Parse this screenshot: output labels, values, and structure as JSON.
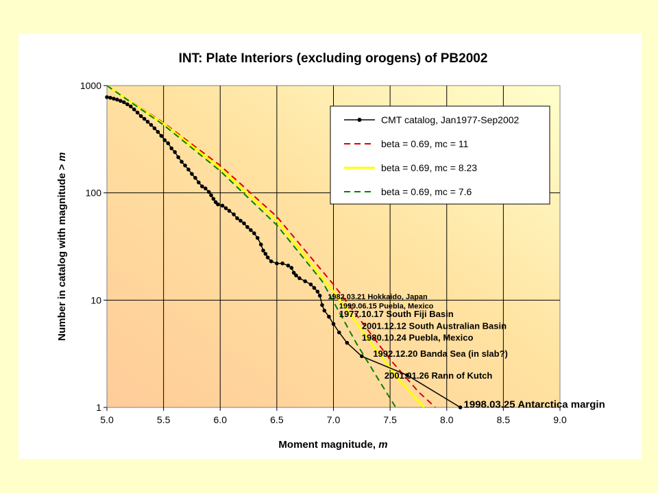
{
  "chart_data": {
    "type": "line",
    "title": "INT: Plate Interiors (excluding orogens) of PB2002",
    "xlabel": "Moment magnitude, ",
    "xlabel_var": "m",
    "ylabel": "Number in catalog with magnitude > ",
    "ylabel_var": "m",
    "xlim": [
      5.0,
      9.0
    ],
    "ylim": [
      1,
      1000
    ],
    "yscale": "log",
    "grid": true,
    "legend_position": "top-right",
    "x_ticks": [
      "5.0",
      "5.5",
      "6.0",
      "6.5",
      "7.0",
      "7.5",
      "8.0",
      "8.5",
      "9.0"
    ],
    "y_ticks": [
      "1",
      "10",
      "100",
      "1000"
    ],
    "series": [
      {
        "name": "CMT catalog, Jan1977-Sep2002",
        "color": "#000000",
        "style": "solid-markers",
        "points": [
          [
            5.0,
            780
          ],
          [
            5.03,
            770
          ],
          [
            5.06,
            755
          ],
          [
            5.09,
            740
          ],
          [
            5.12,
            720
          ],
          [
            5.15,
            700
          ],
          [
            5.18,
            670
          ],
          [
            5.21,
            640
          ],
          [
            5.24,
            600
          ],
          [
            5.27,
            560
          ],
          [
            5.3,
            520
          ],
          [
            5.33,
            490
          ],
          [
            5.36,
            460
          ],
          [
            5.39,
            430
          ],
          [
            5.42,
            400
          ],
          [
            5.45,
            370
          ],
          [
            5.48,
            340
          ],
          [
            5.51,
            310
          ],
          [
            5.54,
            290
          ],
          [
            5.57,
            260
          ],
          [
            5.6,
            240
          ],
          [
            5.63,
            215
          ],
          [
            5.66,
            195
          ],
          [
            5.69,
            180
          ],
          [
            5.72,
            165
          ],
          [
            5.75,
            150
          ],
          [
            5.78,
            138
          ],
          [
            5.81,
            125
          ],
          [
            5.84,
            115
          ],
          [
            5.87,
            110
          ],
          [
            5.9,
            102
          ],
          [
            5.92,
            95
          ],
          [
            5.94,
            88
          ],
          [
            5.96,
            82
          ],
          [
            5.98,
            78
          ],
          [
            6.02,
            76
          ],
          [
            6.05,
            72
          ],
          [
            6.08,
            68
          ],
          [
            6.12,
            63
          ],
          [
            6.15,
            58
          ],
          [
            6.18,
            55
          ],
          [
            6.21,
            52
          ],
          [
            6.24,
            48
          ],
          [
            6.27,
            45
          ],
          [
            6.3,
            42
          ],
          [
            6.33,
            38
          ],
          [
            6.36,
            33
          ],
          [
            6.38,
            29
          ],
          [
            6.4,
            27
          ],
          [
            6.42,
            25
          ],
          [
            6.45,
            23
          ],
          [
            6.5,
            22
          ],
          [
            6.55,
            22
          ],
          [
            6.6,
            21
          ],
          [
            6.63,
            20
          ],
          [
            6.65,
            18
          ],
          [
            6.67,
            17
          ],
          [
            6.7,
            16
          ],
          [
            6.75,
            15
          ],
          [
            6.8,
            14
          ],
          [
            6.83,
            13
          ],
          [
            6.86,
            12
          ],
          [
            6.88,
            11
          ],
          [
            6.9,
            9
          ],
          [
            6.92,
            8
          ],
          [
            6.96,
            7
          ],
          [
            7.0,
            6
          ],
          [
            7.05,
            5
          ],
          [
            7.12,
            4
          ],
          [
            7.25,
            3
          ],
          [
            7.65,
            2
          ],
          [
            8.12,
            1
          ]
        ]
      },
      {
        "name": "beta = 0.69, mc = 11",
        "color": "#DD0000",
        "style": "dashed",
        "points": [
          [
            5.0,
            1000
          ],
          [
            5.5,
            450
          ],
          [
            6.0,
            180
          ],
          [
            6.5,
            60
          ],
          [
            7.0,
            14
          ],
          [
            7.5,
            2.8
          ],
          [
            7.75,
            1.4
          ],
          [
            7.9,
            1.0
          ]
        ]
      },
      {
        "name": "beta = 0.69, mc = 8.23",
        "color": "#FFFF00",
        "style": "solid-thick",
        "points": [
          [
            5.0,
            1000
          ],
          [
            5.5,
            440
          ],
          [
            6.0,
            170
          ],
          [
            6.5,
            55
          ],
          [
            7.0,
            12
          ],
          [
            7.4,
            3.2
          ],
          [
            7.6,
            1.7
          ],
          [
            7.8,
            1.0
          ]
        ]
      },
      {
        "name": "beta = 0.69, mc = 7.6",
        "color": "#008000",
        "style": "dashed",
        "points": [
          [
            5.0,
            1000
          ],
          [
            5.5,
            430
          ],
          [
            6.0,
            160
          ],
          [
            6.5,
            50
          ],
          [
            6.9,
            15
          ],
          [
            7.2,
            4
          ],
          [
            7.4,
            1.8
          ],
          [
            7.55,
            1.0
          ]
        ]
      }
    ],
    "annotations": [
      {
        "text": "1982.03.21 Hokkaido, Japan",
        "x": 6.95,
        "y": 11
      },
      {
        "text": "1999.06.15 Puebla, Mexico",
        "x": 7.05,
        "y": 9.0
      },
      {
        "text": "1977.10.17 South Fiji Basin",
        "x": 7.05,
        "y": 7.5
      },
      {
        "text": "2001.12.12 South Australian Basin",
        "x": 7.25,
        "y": 5.8
      },
      {
        "text": "1980.10.24 Puebla, Mexico",
        "x": 7.25,
        "y": 4.5
      },
      {
        "text": "1992.12.20 Banda Sea (in slab?)",
        "x": 7.35,
        "y": 3.2
      },
      {
        "text": "2001.01.26 Rann of Kutch",
        "x": 7.45,
        "y": 2.0
      },
      {
        "text": "1998.03.25 Antarctica margin",
        "x": 8.15,
        "y": 1.07
      }
    ]
  }
}
